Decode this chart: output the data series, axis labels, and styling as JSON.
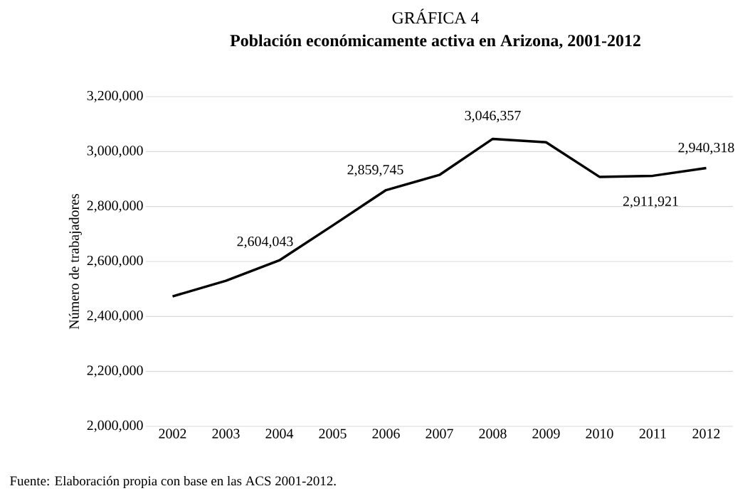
{
  "chart_data": {
    "type": "line",
    "title": "GRÁFICA 4",
    "subtitle": "Población económicamente activa en Arizona, 2001-2012",
    "ylabel": "Número de trabajadores",
    "categories": [
      "2002",
      "2003",
      "2004",
      "2005",
      "2006",
      "2007",
      "2008",
      "2009",
      "2010",
      "2011",
      "2012"
    ],
    "series": [
      {
        "color": "#000000",
        "values": [
          2473000,
          2530000,
          2604043,
          2731000,
          2859745,
          2915000,
          3046357,
          3034000,
          2908000,
          2911921,
          2940318
        ],
        "value_labels": [
          null,
          null,
          "2,604,043",
          null,
          "2,859,745",
          null,
          "3,046,357",
          null,
          null,
          "2,911,921",
          "2,940,318"
        ]
      }
    ],
    "ylim": [
      2000000,
      3200000
    ],
    "yticks": [
      {
        "value": 2000000,
        "label": "2,000,000"
      },
      {
        "value": 2200000,
        "label": "2,200,000"
      },
      {
        "value": 2400000,
        "label": "2,400,000"
      },
      {
        "value": 2600000,
        "label": "2,600,000"
      },
      {
        "value": 2800000,
        "label": "2,800,000"
      },
      {
        "value": 3000000,
        "label": "3,000,000"
      },
      {
        "value": 3200000,
        "label": "3,200,000"
      }
    ],
    "grid": "y",
    "marker": "none",
    "line_style": "solid",
    "annotations": [
      "Fuente: Elaboración propia con base en las ACS 2001-2012."
    ]
  }
}
